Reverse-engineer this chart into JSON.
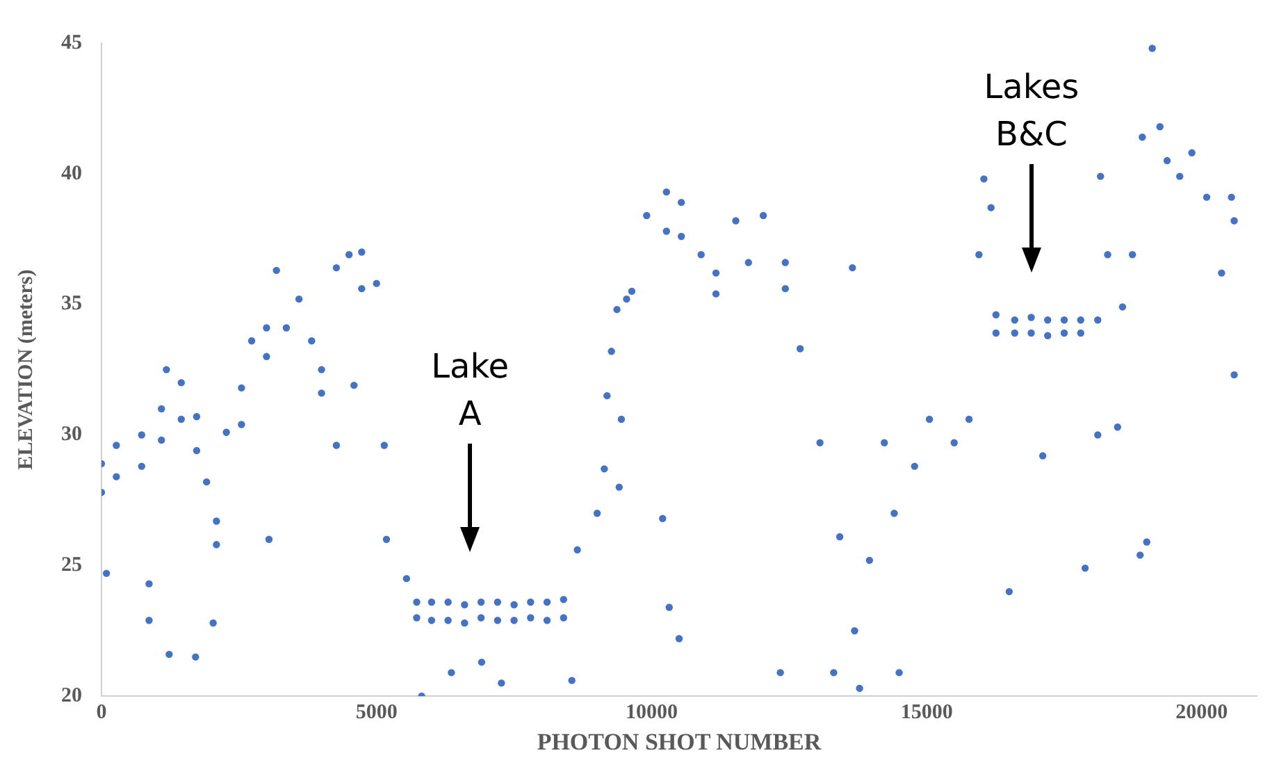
{
  "chart_data": {
    "type": "scatter",
    "xlabel": "PHOTON SHOT NUMBER",
    "ylabel": "ELEVATION (meters)",
    "xlim": [
      0,
      21000
    ],
    "ylim": [
      20,
      45
    ],
    "xticks": [
      0,
      5000,
      10000,
      15000,
      20000
    ],
    "yticks": [
      20,
      25,
      30,
      35,
      40,
      45
    ],
    "grid": false,
    "legend": false,
    "marker": "circle",
    "annotations": [
      "Lake A",
      "Lakes B&C"
    ],
    "series": [
      {
        "color": "#4472c4",
        "x": [
          0,
          0,
          270,
          270,
          730,
          730,
          1090,
          1090,
          1180,
          1450,
          1450,
          1730,
          1730,
          1910,
          2090,
          2090,
          2270,
          2545,
          2545,
          2730,
          3000,
          3000,
          3180,
          3360,
          3590,
          3820,
          4000,
          4000,
          4270,
          4500,
          4730,
          4730,
          5000,
          5140,
          5180,
          5545,
          5730,
          5730,
          6000,
          6000,
          6300,
          6300,
          6600,
          6600,
          6900,
          6900,
          7200,
          7200,
          7500,
          7500,
          7800,
          7800,
          8100,
          8100,
          8400,
          8400,
          8650,
          9010,
          9140,
          9190,
          9270,
          9370,
          9545,
          9640,
          9910,
          10270,
          10270,
          10540,
          10540,
          10900,
          11170,
          11170,
          11530,
          11760,
          12030,
          12430,
          12430,
          12700,
          13060,
          13420,
          13690,
          13780,
          13960,
          14230,
          14410,
          14780,
          15050,
          15500,
          15770,
          15950,
          16040,
          16170,
          16260,
          16260,
          16600,
          16600,
          16900,
          16900,
          17200,
          17200,
          17500,
          17500,
          17800,
          17800,
          18110,
          18160,
          18290,
          18560,
          18740,
          18920,
          19100,
          19240,
          19370,
          19600,
          19820,
          20090,
          20360,
          20540,
          20590,
          90,
          865,
          865,
          1230,
          1710,
          2030,
          3045,
          4270,
          4590,
          5820,
          6360,
          6910,
          7270,
          8550,
          9410,
          9450,
          10200,
          10320,
          10500,
          12340,
          13310,
          13650,
          14500,
          16500,
          17110,
          17880,
          18110,
          18470,
          18880,
          19000,
          20590
        ],
        "values": [
          28.9,
          27.8,
          29.6,
          28.4,
          30.0,
          28.8,
          31.0,
          29.8,
          32.5,
          32.0,
          30.6,
          30.7,
          29.4,
          28.2,
          26.7,
          25.8,
          30.1,
          31.8,
          30.4,
          33.6,
          34.1,
          33.0,
          36.3,
          34.1,
          35.2,
          33.6,
          32.5,
          31.6,
          36.4,
          36.9,
          37.0,
          35.6,
          35.8,
          29.6,
          26.0,
          24.5,
          23.6,
          23.0,
          23.6,
          22.9,
          23.6,
          22.9,
          23.5,
          22.8,
          23.6,
          23.0,
          23.6,
          22.9,
          23.5,
          22.9,
          23.6,
          23.0,
          23.6,
          22.9,
          23.7,
          23.0,
          25.6,
          27.0,
          28.7,
          31.5,
          33.2,
          34.8,
          35.2,
          35.5,
          38.4,
          39.3,
          37.8,
          38.9,
          37.6,
          36.9,
          36.2,
          35.4,
          38.2,
          36.6,
          38.4,
          36.6,
          35.6,
          33.3,
          29.7,
          26.1,
          22.5,
          20.3,
          25.2,
          29.7,
          27.0,
          28.8,
          30.6,
          29.7,
          30.6,
          36.9,
          39.8,
          38.7,
          34.6,
          33.9,
          34.4,
          33.9,
          34.5,
          33.9,
          34.4,
          33.8,
          34.4,
          33.9,
          34.4,
          33.9,
          34.4,
          39.9,
          36.9,
          34.9,
          36.9,
          41.4,
          44.8,
          41.8,
          40.5,
          39.9,
          40.8,
          39.1,
          36.2,
          39.1,
          38.2,
          24.7,
          24.3,
          22.9,
          21.6,
          21.5,
          22.8,
          26.0,
          29.6,
          31.9,
          20.0,
          20.9,
          21.3,
          20.5,
          20.6,
          28.0,
          30.6,
          26.8,
          23.4,
          22.2,
          20.9,
          20.9,
          36.4,
          20.9,
          24.0,
          29.2,
          24.9,
          30.0,
          30.3,
          25.4,
          25.9,
          32.3
        ]
      }
    ]
  }
}
